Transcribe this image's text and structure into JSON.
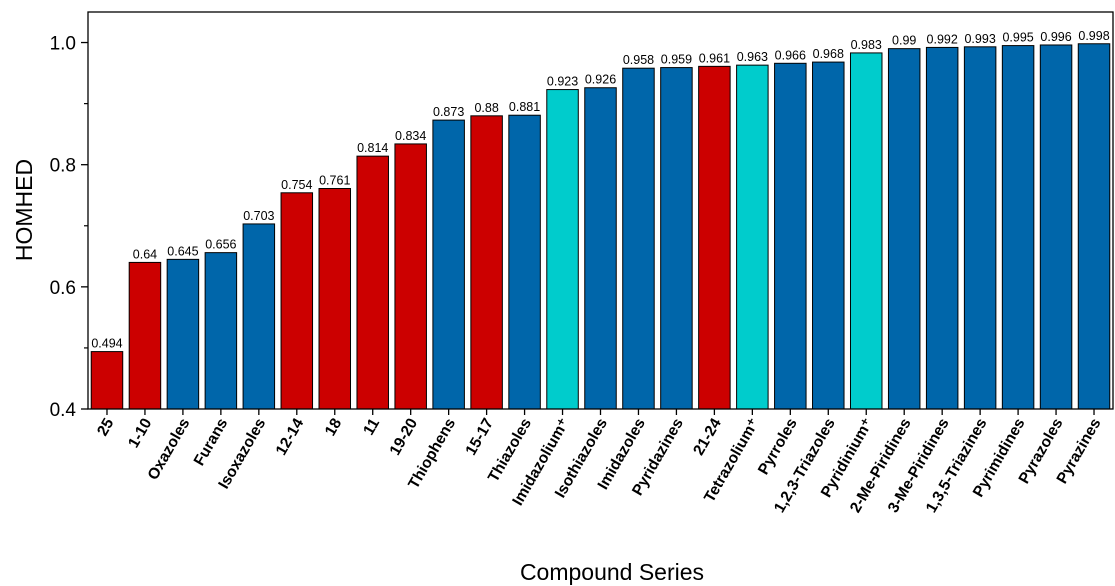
{
  "chart_data": {
    "type": "bar",
    "title": "",
    "xlabel": "Compound Series",
    "ylabel": "HOMHED",
    "ylim": [
      0.4,
      1.05
    ],
    "yticks": [
      0.4,
      0.6,
      0.8,
      1.0
    ],
    "ytick_labels": [
      "0.4",
      "0.6",
      "0.8",
      "1.0"
    ],
    "grid": false,
    "categories": [
      "25",
      "1-10",
      "Oxazoles",
      "Furans",
      "Isoxazoles",
      "12-14",
      "18",
      "11",
      "19-20",
      "Thiophens",
      "15-17",
      "Thiazoles",
      "Imidazolium⁺",
      "Isothiazoles",
      "Imidazoles",
      "Pyridazines",
      "21-24",
      "Tetrazolium⁺",
      "Pyrroles",
      "1,2,3-Triazoles",
      "Pyridinium⁺",
      "2-Me-Piridines",
      "3-Me-Piridines",
      "1,3,5-Triazines",
      "Pyrimidines",
      "Pyrazoles",
      "Pyrazines"
    ],
    "values": [
      0.494,
      0.64,
      0.645,
      0.656,
      0.703,
      0.754,
      0.761,
      0.814,
      0.834,
      0.873,
      0.88,
      0.881,
      0.923,
      0.926,
      0.958,
      0.959,
      0.961,
      0.963,
      0.966,
      0.968,
      0.983,
      0.99,
      0.992,
      0.993,
      0.995,
      0.996,
      0.998
    ],
    "value_labels": [
      "0.494",
      "0.64",
      "0.645",
      "0.656",
      "0.703",
      "0.754",
      "0.761",
      "0.814",
      "0.834",
      "0.873",
      "0.88",
      "0.881",
      "0.923",
      "0.926",
      "0.958",
      "0.959",
      "0.961",
      "0.963",
      "0.966",
      "0.968",
      "0.983",
      "0.99",
      "0.992",
      "0.993",
      "0.995",
      "0.996",
      "0.998"
    ],
    "bar_colors": [
      "#CC0000",
      "#CC0000",
      "#0066AA",
      "#0066AA",
      "#0066AA",
      "#CC0000",
      "#CC0000",
      "#CC0000",
      "#CC0000",
      "#0066AA",
      "#CC0000",
      "#0066AA",
      "#00CCCC",
      "#0066AA",
      "#0066AA",
      "#0066AA",
      "#CC0000",
      "#00CCCC",
      "#0066AA",
      "#0066AA",
      "#00CCCC",
      "#0066AA",
      "#0066AA",
      "#0066AA",
      "#0066AA",
      "#0066AA",
      "#0066AA"
    ]
  }
}
